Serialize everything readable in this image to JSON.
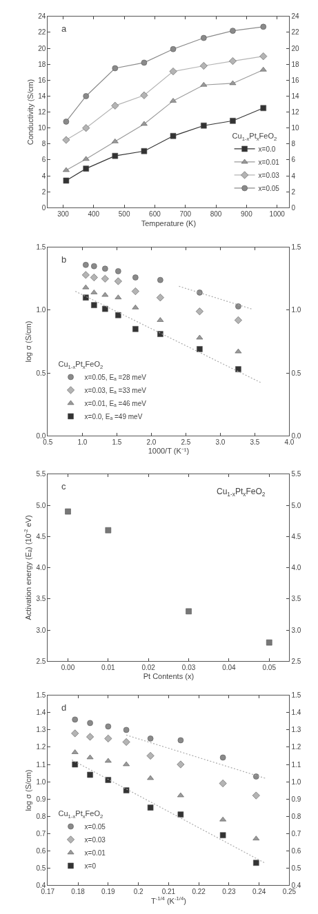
{
  "chart_data": [
    {
      "type": "line",
      "xlabel": "Temperature (K)",
      "ylabel": "Conductivity (S/cm)",
      "xlim": [
        250,
        1040
      ],
      "xticks": [
        300,
        400,
        500,
        600,
        700,
        800,
        900,
        1000
      ],
      "ylim": [
        0,
        24
      ],
      "yticks": [
        0,
        2,
        4,
        6,
        8,
        10,
        12,
        14,
        16,
        18,
        20,
        22,
        24
      ],
      "y2lim": [
        0,
        24
      ],
      "y2ticks": [
        0,
        2,
        4,
        6,
        8,
        10,
        12,
        14,
        16,
        18,
        20,
        22,
        24
      ],
      "legend": "bottom right",
      "legend_title": "Cu$_{1-x}$Pt$_{x}$FeO$_{2}$",
      "line_style": "solid",
      "annotations": [
        "a"
      ],
      "x": [
        310,
        375,
        470,
        565,
        660,
        760,
        855,
        955
      ],
      "series": [
        {
          "name": "x=0.0",
          "color": "#333333",
          "marker": "square",
          "values": [
            3.4,
            4.9,
            6.5,
            7.1,
            9.0,
            10.3,
            10.9,
            12.5
          ]
        },
        {
          "name": "x=0.01",
          "color": "#9a9a9a",
          "marker": "triangle",
          "values": [
            4.7,
            6.1,
            8.3,
            10.5,
            13.4,
            15.4,
            15.6,
            17.3
          ]
        },
        {
          "name": "x=0.03",
          "color": "#b4b4b4",
          "marker": "diamond",
          "values": [
            8.5,
            10.0,
            12.8,
            14.1,
            17.1,
            17.8,
            18.4,
            19.0
          ]
        },
        {
          "name": "x=0.05",
          "color": "#8a8a8a",
          "marker": "circle",
          "values": [
            10.8,
            14.0,
            17.5,
            18.2,
            19.9,
            21.3,
            22.2,
            22.7
          ]
        }
      ]
    },
    {
      "type": "scatter",
      "xlabel": "1000/T (K⁻¹)",
      "ylabel": "log σ (S/cm)",
      "xlim": [
        0.5,
        4.0
      ],
      "xticks": [
        0.5,
        {
          "value": 1,
          "label": "1.0"
        },
        1.5,
        {
          "value": 2,
          "label": "2.0"
        },
        2.5,
        {
          "value": 3,
          "label": "3.0"
        },
        3.5,
        {
          "value": 4,
          "label": "4.0"
        }
      ],
      "ylim": [
        0.0,
        1.5
      ],
      "yticks": [
        {
          "value": 0,
          "label": "0.0"
        },
        0.5,
        {
          "value": 1,
          "label": "1.0"
        },
        1.5
      ],
      "y2lim": [
        0.0,
        1.5
      ],
      "y2ticks": [
        {
          "value": 0,
          "label": "0.0"
        },
        0.5,
        {
          "value": 1,
          "label": "1.0"
        },
        1.5
      ],
      "legend": "bottom left",
      "legend_title": "Cu$_{1-x}$Pt$_{x}$FeO$_{2}$",
      "annotations": [
        "b"
      ],
      "x": [
        1.05,
        1.17,
        1.33,
        1.52,
        1.77,
        2.13,
        2.7,
        3.26
      ],
      "series": [
        {
          "name": "x=0.05, Eₐ =28 meV",
          "color": "#8a8a8a",
          "marker": "circle",
          "values": [
            1.36,
            1.35,
            1.33,
            1.31,
            1.26,
            1.24,
            1.14,
            1.03
          ]
        },
        {
          "name": "x=0.03, Eₐ =33 meV",
          "color": "#b4b4b4",
          "marker": "diamond",
          "values": [
            1.28,
            1.26,
            1.25,
            1.23,
            1.15,
            1.1,
            0.99,
            0.92
          ]
        },
        {
          "name": "x=0.01, Eₐ =46 meV",
          "color": "#9a9a9a",
          "marker": "triangle",
          "values": [
            1.18,
            1.14,
            1.12,
            1.1,
            1.02,
            0.92,
            0.78,
            0.67
          ]
        },
        {
          "name": "x=0.0, Eₐ =49 meV",
          "color": "#333333",
          "marker": "square",
          "values": [
            1.1,
            1.04,
            1.01,
            0.96,
            0.85,
            0.81,
            0.69,
            0.53
          ]
        },
        {
          "type": "line",
          "color": "#aaaaaa",
          "marker": "none",
          "line_style": "dotted",
          "x": [
            0.9,
            3.6
          ],
          "values": [
            1.15,
            0.42
          ]
        },
        {
          "type": "line",
          "color": "#aaaaaa",
          "marker": "none",
          "line_style": "dotted",
          "x": [
            2.4,
            3.45
          ],
          "values": [
            1.19,
            1.01
          ]
        }
      ]
    },
    {
      "type": "scatter",
      "xlabel": "Pt Contents (x)",
      "ylabel": "Activation energy (Eₐ) (10$^{-2}$ eV)",
      "xlim": [
        -0.005,
        0.055
      ],
      "xticks": [
        {
          "value": 0,
          "label": "0.00"
        },
        0.01,
        0.02,
        0.03,
        0.04,
        0.05
      ],
      "ylim": [
        2.5,
        5.5
      ],
      "yticks": [
        2.5,
        {
          "value": 3,
          "label": "3.0"
        },
        3.5,
        {
          "value": 4,
          "label": "4.0"
        },
        4.5,
        {
          "value": 5,
          "label": "5.0"
        },
        5.5
      ],
      "y2lim": [
        2.5,
        5.5
      ],
      "y2ticks": [
        2.5,
        {
          "value": 3,
          "label": "3.0"
        },
        3.5,
        {
          "value": 4,
          "label": "4.0"
        },
        4.5,
        {
          "value": 5,
          "label": "5.0"
        },
        5.5
      ],
      "annotations": [
        "c",
        "Cu$_{1-x}$Pt$_{x}$FeO$_{2}$"
      ],
      "x": [
        0.0,
        0.01,
        0.03,
        0.05
      ],
      "series": [
        {
          "color": "#777777",
          "marker": "square",
          "values": [
            4.9,
            4.6,
            3.3,
            2.8
          ]
        }
      ]
    },
    {
      "type": "scatter",
      "xlabel": "T$^{-1/4}$ (K$^{-1/4}$)",
      "ylabel": "log σ (S/cm)",
      "xlim": [
        0.17,
        0.25
      ],
      "xticks": [
        0.17,
        0.18,
        0.19,
        0.2,
        0.21,
        0.22,
        0.23,
        0.24,
        0.25
      ],
      "ylim": [
        0.4,
        1.5
      ],
      "yticks": [
        0.4,
        0.5,
        0.6,
        0.7,
        0.8,
        0.9,
        {
          "value": 1,
          "label": "1.0"
        },
        1.1,
        1.2,
        1.3,
        1.4,
        1.5
      ],
      "y2lim": [
        0.4,
        1.5
      ],
      "y2ticks": [
        0.4,
        0.5,
        0.6,
        0.7,
        0.8,
        0.9,
        {
          "value": 1,
          "label": "1.0"
        },
        1.1,
        1.2,
        1.3,
        1.4,
        1.5
      ],
      "legend": "bottom left",
      "legend_title": "Cu$_{1-x}$Pt$_{x}$FeO$_{2}$",
      "annotations": [
        "d"
      ],
      "x": [
        0.179,
        0.184,
        0.19,
        0.196,
        0.204,
        0.214,
        0.228,
        0.239
      ],
      "series": [
        {
          "name": "x=0.05",
          "color": "#8a8a8a",
          "marker": "circle",
          "values": [
            1.36,
            1.34,
            1.32,
            1.3,
            1.25,
            1.24,
            1.14,
            1.03
          ]
        },
        {
          "name": "x=0.03",
          "color": "#b4b4b4",
          "marker": "diamond",
          "values": [
            1.28,
            1.26,
            1.25,
            1.23,
            1.15,
            1.1,
            0.99,
            0.92
          ]
        },
        {
          "name": "x=0.01",
          "color": "#9a9a9a",
          "marker": "triangle",
          "values": [
            1.17,
            1.14,
            1.12,
            1.1,
            1.02,
            0.92,
            0.78,
            0.67
          ]
        },
        {
          "name": "x=0",
          "color": "#333333",
          "marker": "square",
          "values": [
            1.1,
            1.04,
            1.01,
            0.95,
            0.85,
            0.81,
            0.69,
            0.53
          ]
        },
        {
          "type": "line",
          "color": "#aaaaaa",
          "marker": "none",
          "line_style": "dotted",
          "x": [
            0.178,
            0.242
          ],
          "values": [
            1.126,
            0.528
          ]
        },
        {
          "type": "line",
          "color": "#aaaaaa",
          "marker": "none",
          "line_style": "dotted",
          "x": [
            0.196,
            0.242
          ],
          "values": [
            1.27,
            1.02
          ]
        }
      ]
    }
  ]
}
